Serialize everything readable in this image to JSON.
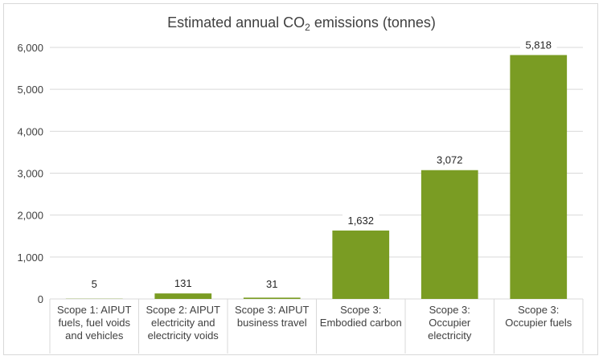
{
  "chart_data": {
    "type": "bar",
    "title": {
      "main": "Estimated annual CO",
      "sub": "2",
      "rest": " emissions (tonnes)"
    },
    "categories": [
      [
        "Scope 1: AIPUT",
        "fuels, fuel voids",
        "and vehicles"
      ],
      [
        "Scope 2: AIPUT",
        "electricity and",
        "electricity voids"
      ],
      [
        "Scope 3: AIPUT",
        "business travel"
      ],
      [
        "Scope 3:",
        "Embodied carbon"
      ],
      [
        "Scope 3:",
        "Occupier",
        "electricity"
      ],
      [
        "Scope 3:",
        "Occupier fuels"
      ]
    ],
    "values": [
      5,
      131,
      31,
      1632,
      3072,
      5818
    ],
    "value_labels": [
      "5",
      "131",
      "31",
      "1,632",
      "3,072",
      "5,818"
    ],
    "ylim": [
      0,
      6000
    ],
    "yticks": [
      0,
      1000,
      2000,
      3000,
      4000,
      5000,
      6000
    ],
    "ytick_labels": [
      "0",
      "1,000",
      "2,000",
      "3,000",
      "4,000",
      "5,000",
      "6,000"
    ],
    "grid": true,
    "bar_color": "#7a9c23",
    "grid_color": "#d9d9d9"
  }
}
